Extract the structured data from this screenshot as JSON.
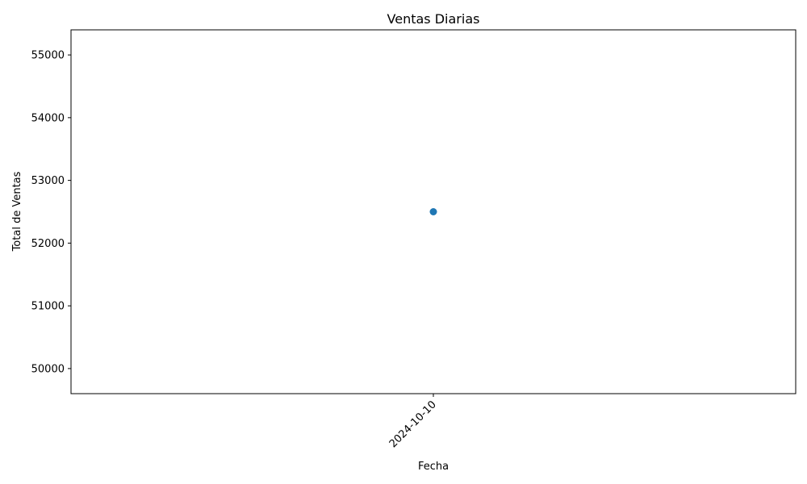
{
  "chart_data": {
    "type": "scatter",
    "title": "Ventas Diarias",
    "xlabel": "Fecha",
    "ylabel": "Total de Ventas",
    "x_categories": [
      "2024-10-10"
    ],
    "points": [
      {
        "x": "2024-10-10",
        "y": 52500
      }
    ],
    "ylim": [
      49600,
      55400
    ],
    "yticks": [
      {
        "value": 50000,
        "label": "50000"
      },
      {
        "value": 51000,
        "label": "51000"
      },
      {
        "value": 52000,
        "label": "52000"
      },
      {
        "value": 53000,
        "label": "53000"
      },
      {
        "value": 54000,
        "label": "54000"
      },
      {
        "value": 55000,
        "label": "55000"
      }
    ],
    "xticks": [
      {
        "value": "2024-10-10",
        "label": "2024-10-10"
      }
    ],
    "grid": false,
    "colors": {
      "point": "#1f77b4",
      "axis": "#000000",
      "background": "#ffffff"
    }
  }
}
